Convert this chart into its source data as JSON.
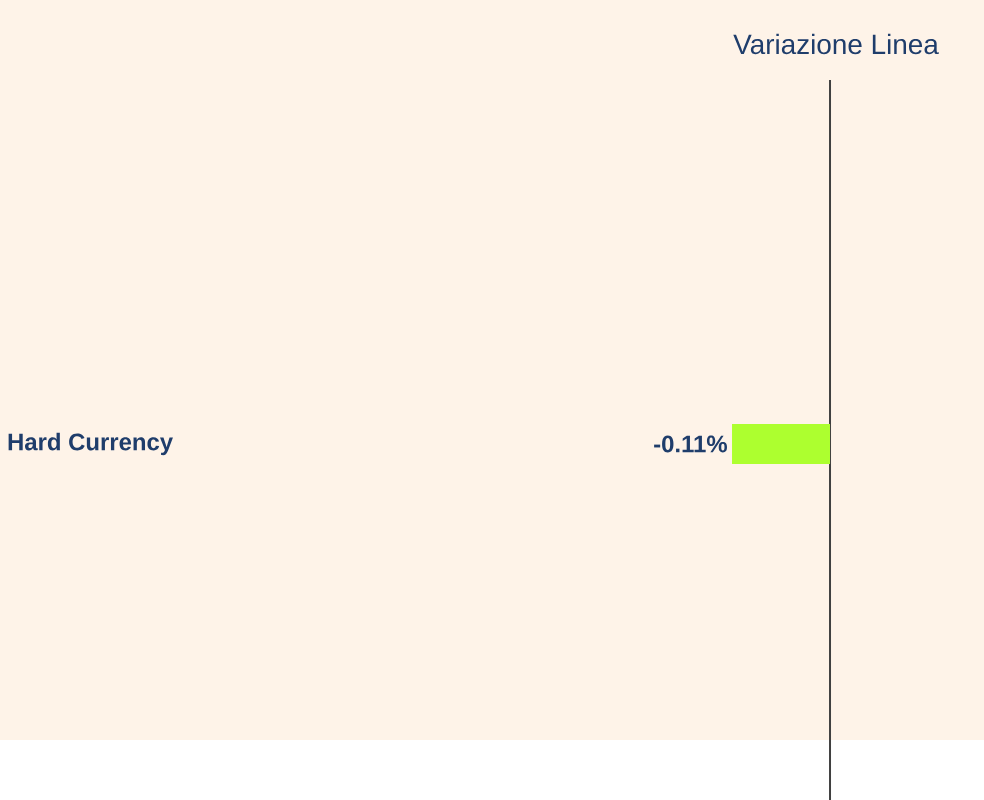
{
  "chart_data": {
    "type": "bar",
    "orientation": "horizontal",
    "title": "Variazione Linea",
    "categories": [
      "Hard Currency"
    ],
    "values": [
      -0.11
    ],
    "value_labels": [
      "-0.11%"
    ],
    "color": "#adff2f"
  }
}
